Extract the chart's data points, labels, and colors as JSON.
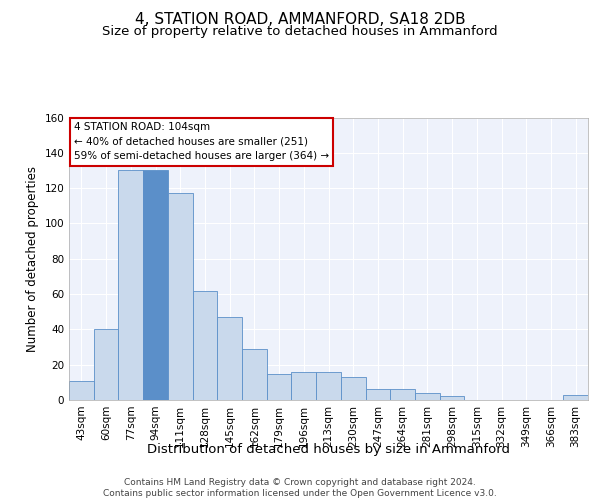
{
  "title1": "4, STATION ROAD, AMMANFORD, SA18 2DB",
  "title2": "Size of property relative to detached houses in Ammanford",
  "xlabel": "Distribution of detached houses by size in Ammanford",
  "ylabel": "Number of detached properties",
  "categories": [
    "43sqm",
    "60sqm",
    "77sqm",
    "94sqm",
    "111sqm",
    "128sqm",
    "145sqm",
    "162sqm",
    "179sqm",
    "196sqm",
    "213sqm",
    "230sqm",
    "247sqm",
    "264sqm",
    "281sqm",
    "298sqm",
    "315sqm",
    "332sqm",
    "349sqm",
    "366sqm",
    "383sqm"
  ],
  "values": [
    11,
    40,
    130,
    130,
    117,
    62,
    47,
    29,
    15,
    16,
    16,
    13,
    6,
    6,
    4,
    2,
    0,
    0,
    0,
    0,
    3
  ],
  "bar_color": "#c9d9ec",
  "bar_edge_color": "#5b8fc9",
  "highlight_bar_index": 3,
  "highlight_color": "#5b8fc9",
  "annotation_line1": "4 STATION ROAD: 104sqm",
  "annotation_line2": "← 40% of detached houses are smaller (251)",
  "annotation_line3": "59% of semi-detached houses are larger (364) →",
  "annotation_box_color": "#ffffff",
  "annotation_box_edge_color": "#cc0000",
  "ylim": [
    0,
    160
  ],
  "yticks": [
    0,
    20,
    40,
    60,
    80,
    100,
    120,
    140,
    160
  ],
  "background_color": "#eef2fb",
  "grid_color": "#ffffff",
  "footer_text": "Contains HM Land Registry data © Crown copyright and database right 2024.\nContains public sector information licensed under the Open Government Licence v3.0.",
  "title1_fontsize": 11,
  "title2_fontsize": 9.5,
  "xlabel_fontsize": 9.5,
  "ylabel_fontsize": 8.5,
  "tick_fontsize": 7.5,
  "footer_fontsize": 6.5
}
